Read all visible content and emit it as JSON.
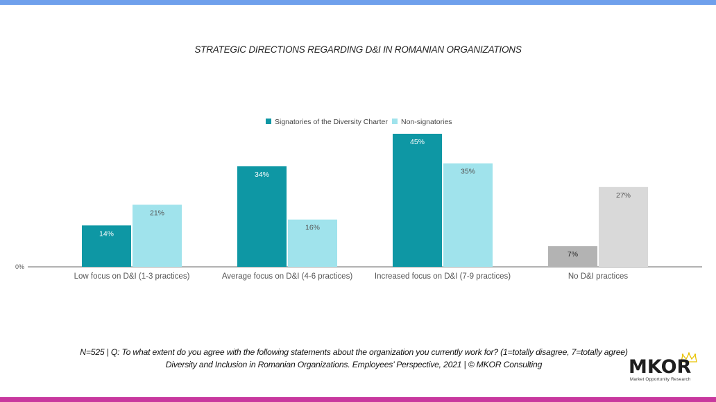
{
  "chart_data": {
    "type": "bar",
    "title": "STRATEGIC DIRECTIONS REGARDING D&I IN ROMANIAN ORGANIZATIONS",
    "categories": [
      "Low focus on D&I (1-3 practices)",
      "Average focus on D&I (4-6 practices)",
      "Increased focus on D&I (7-9 practices)",
      "No D&I practices"
    ],
    "series": [
      {
        "name": "Signatories of the Diversity Charter",
        "values": [
          14,
          34,
          45,
          7
        ],
        "labels": [
          "14%",
          "34%",
          "45%",
          "7%"
        ],
        "color": "#0e97a4",
        "last_bar_color": "#b3b3b3"
      },
      {
        "name": "Non-signatories",
        "values": [
          21,
          16,
          35,
          27
        ],
        "labels": [
          "21%",
          "16%",
          "35%",
          "27%"
        ],
        "color": "#a0e3ec",
        "last_bar_color": "#d9d9d9"
      }
    ],
    "ylim": [
      0,
      45
    ],
    "y_tick_label": "0%",
    "legend": "top-center",
    "grid": false
  },
  "footer": {
    "line1": "N=525 | Q: To what extent do you agree with the following statements about the organization you currently work for? (1=totally disagree, 7=totally agree)",
    "line2": "Diversity and Inclusion in Romanian Organizations. Employees’ Perspective, 2021 | © MKOR Consulting"
  },
  "logo": {
    "name": "MKOR",
    "tagline": "Market Opportunity Research"
  },
  "colors": {
    "top_bar": "#6fa0ec",
    "bottom_bar": "#c8389e"
  }
}
